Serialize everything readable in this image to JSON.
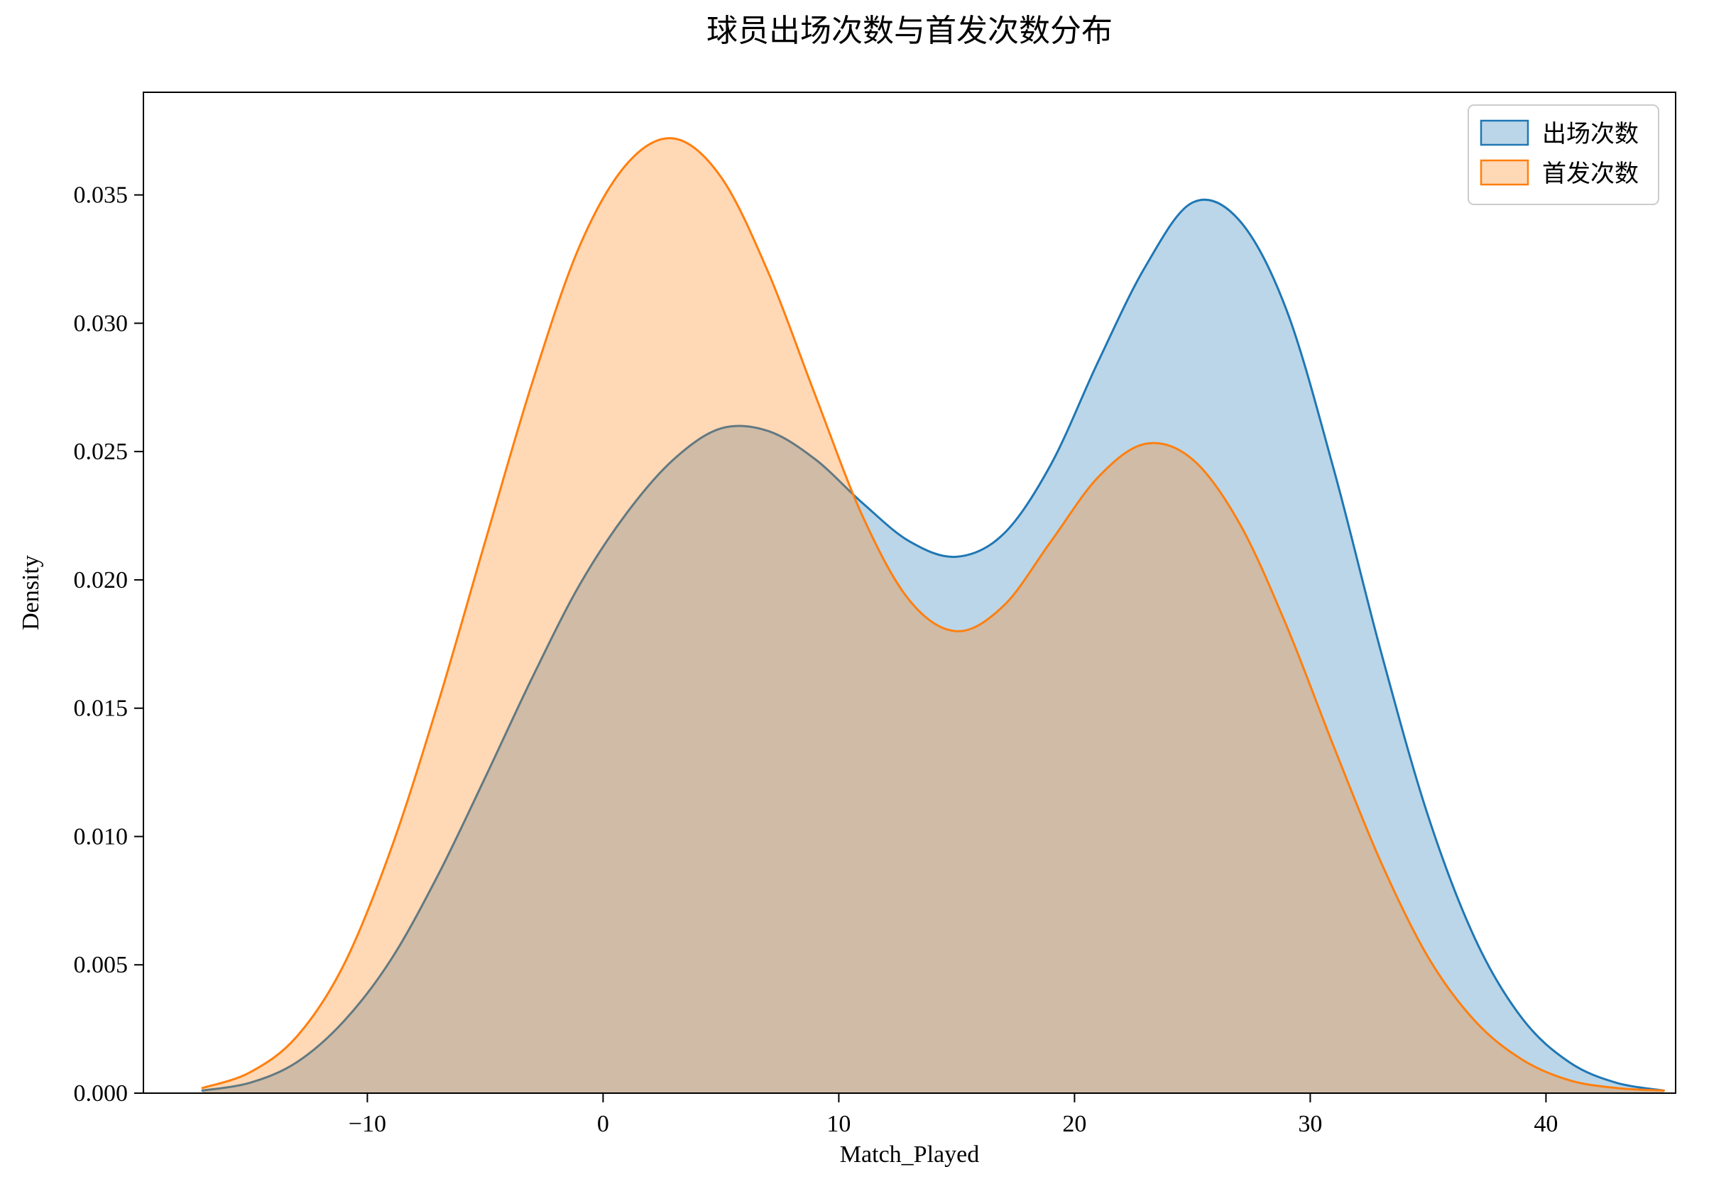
{
  "figure": {
    "title": "球员出场次数与首发次数分布",
    "xlabel": "Match_Played",
    "ylabel": "Density"
  },
  "chart_data": {
    "type": "area",
    "subtype": "kde-density",
    "title": "球员出场次数与首发次数分布",
    "xlabel": "Match_Played",
    "ylabel": "Density",
    "xlim": [
      -19.5,
      45.5
    ],
    "ylim": [
      0,
      0.039
    ],
    "xticks": [
      -10,
      0,
      10,
      20,
      30,
      40
    ],
    "yticks": [
      0,
      0.005,
      0.01,
      0.015,
      0.02,
      0.025,
      0.03,
      0.035
    ],
    "grid": false,
    "legend": {
      "position": "upper-right",
      "entries": [
        "出场次数",
        "首发次数"
      ]
    },
    "series": [
      {
        "name": "出场次数",
        "color": "#1f77b4",
        "fill_alpha": 0.3,
        "x": [
          -17,
          -15,
          -13,
          -11,
          -9,
          -7,
          -5,
          -3,
          -1,
          1,
          3,
          5,
          7,
          9,
          11,
          13,
          15,
          17,
          19,
          21,
          23,
          25,
          27,
          29,
          31,
          33,
          35,
          37,
          39,
          41,
          43,
          45
        ],
        "y": [
          0.0001,
          0.0004,
          0.0012,
          0.0028,
          0.0052,
          0.0085,
          0.0123,
          0.0162,
          0.0198,
          0.0226,
          0.0247,
          0.0259,
          0.0258,
          0.0247,
          0.023,
          0.0215,
          0.0209,
          0.0218,
          0.0245,
          0.0285,
          0.0322,
          0.0347,
          0.034,
          0.0305,
          0.0243,
          0.0172,
          0.0108,
          0.006,
          0.0029,
          0.0012,
          0.0004,
          0.0001
        ]
      },
      {
        "name": "首发次数",
        "color": "#ff7f0e",
        "fill_alpha": 0.3,
        "x": [
          -17,
          -15,
          -13,
          -11,
          -9,
          -7,
          -5,
          -3,
          -1,
          1,
          3,
          5,
          7,
          9,
          11,
          13,
          15,
          17,
          19,
          21,
          23,
          25,
          27,
          29,
          31,
          33,
          35,
          37,
          39,
          41,
          43,
          45
        ],
        "y": [
          0.0002,
          0.0008,
          0.0022,
          0.005,
          0.0095,
          0.0152,
          0.0215,
          0.0277,
          0.033,
          0.0362,
          0.0372,
          0.0357,
          0.032,
          0.0272,
          0.0225,
          0.0192,
          0.018,
          0.019,
          0.0215,
          0.024,
          0.0253,
          0.0247,
          0.0222,
          0.0182,
          0.0135,
          0.009,
          0.0053,
          0.0028,
          0.0013,
          0.0005,
          0.0002,
          0.0001
        ]
      }
    ]
  }
}
